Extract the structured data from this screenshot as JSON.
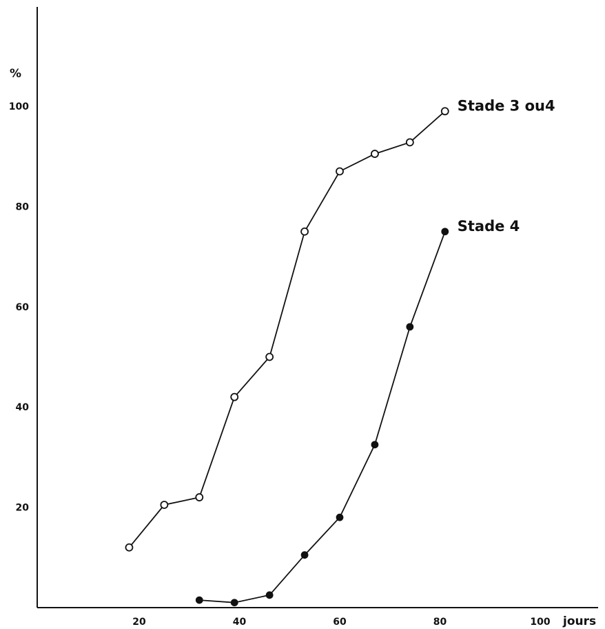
{
  "chart_data": {
    "type": "line",
    "title": "",
    "xlabel": "jours",
    "ylabel": "%",
    "xlim": [
      0,
      105
    ],
    "ylim": [
      0,
      118
    ],
    "x_ticks": [
      20,
      40,
      60,
      80,
      100
    ],
    "x_tick_labels": [
      "20",
      "40",
      "60",
      "80",
      "100"
    ],
    "y_ticks": [
      20,
      40,
      60,
      80,
      100
    ],
    "y_tick_labels": [
      "20",
      "40",
      "60",
      "80",
      "100"
    ],
    "grid": false,
    "series": [
      {
        "name": "Stade 3 ou4",
        "marker": "open-circle",
        "x": [
          18,
          25,
          32,
          39,
          46,
          53,
          60,
          67,
          74,
          81
        ],
        "y": [
          12,
          20.5,
          22,
          42,
          50,
          75,
          87,
          90.5,
          92.8,
          99
        ]
      },
      {
        "name": "Stade 4",
        "marker": "filled-circle",
        "x": [
          32,
          39,
          46,
          53,
          60,
          67,
          74,
          81
        ],
        "y": [
          1.5,
          1,
          2.5,
          10.5,
          18,
          32.5,
          56,
          75
        ]
      }
    ]
  }
}
